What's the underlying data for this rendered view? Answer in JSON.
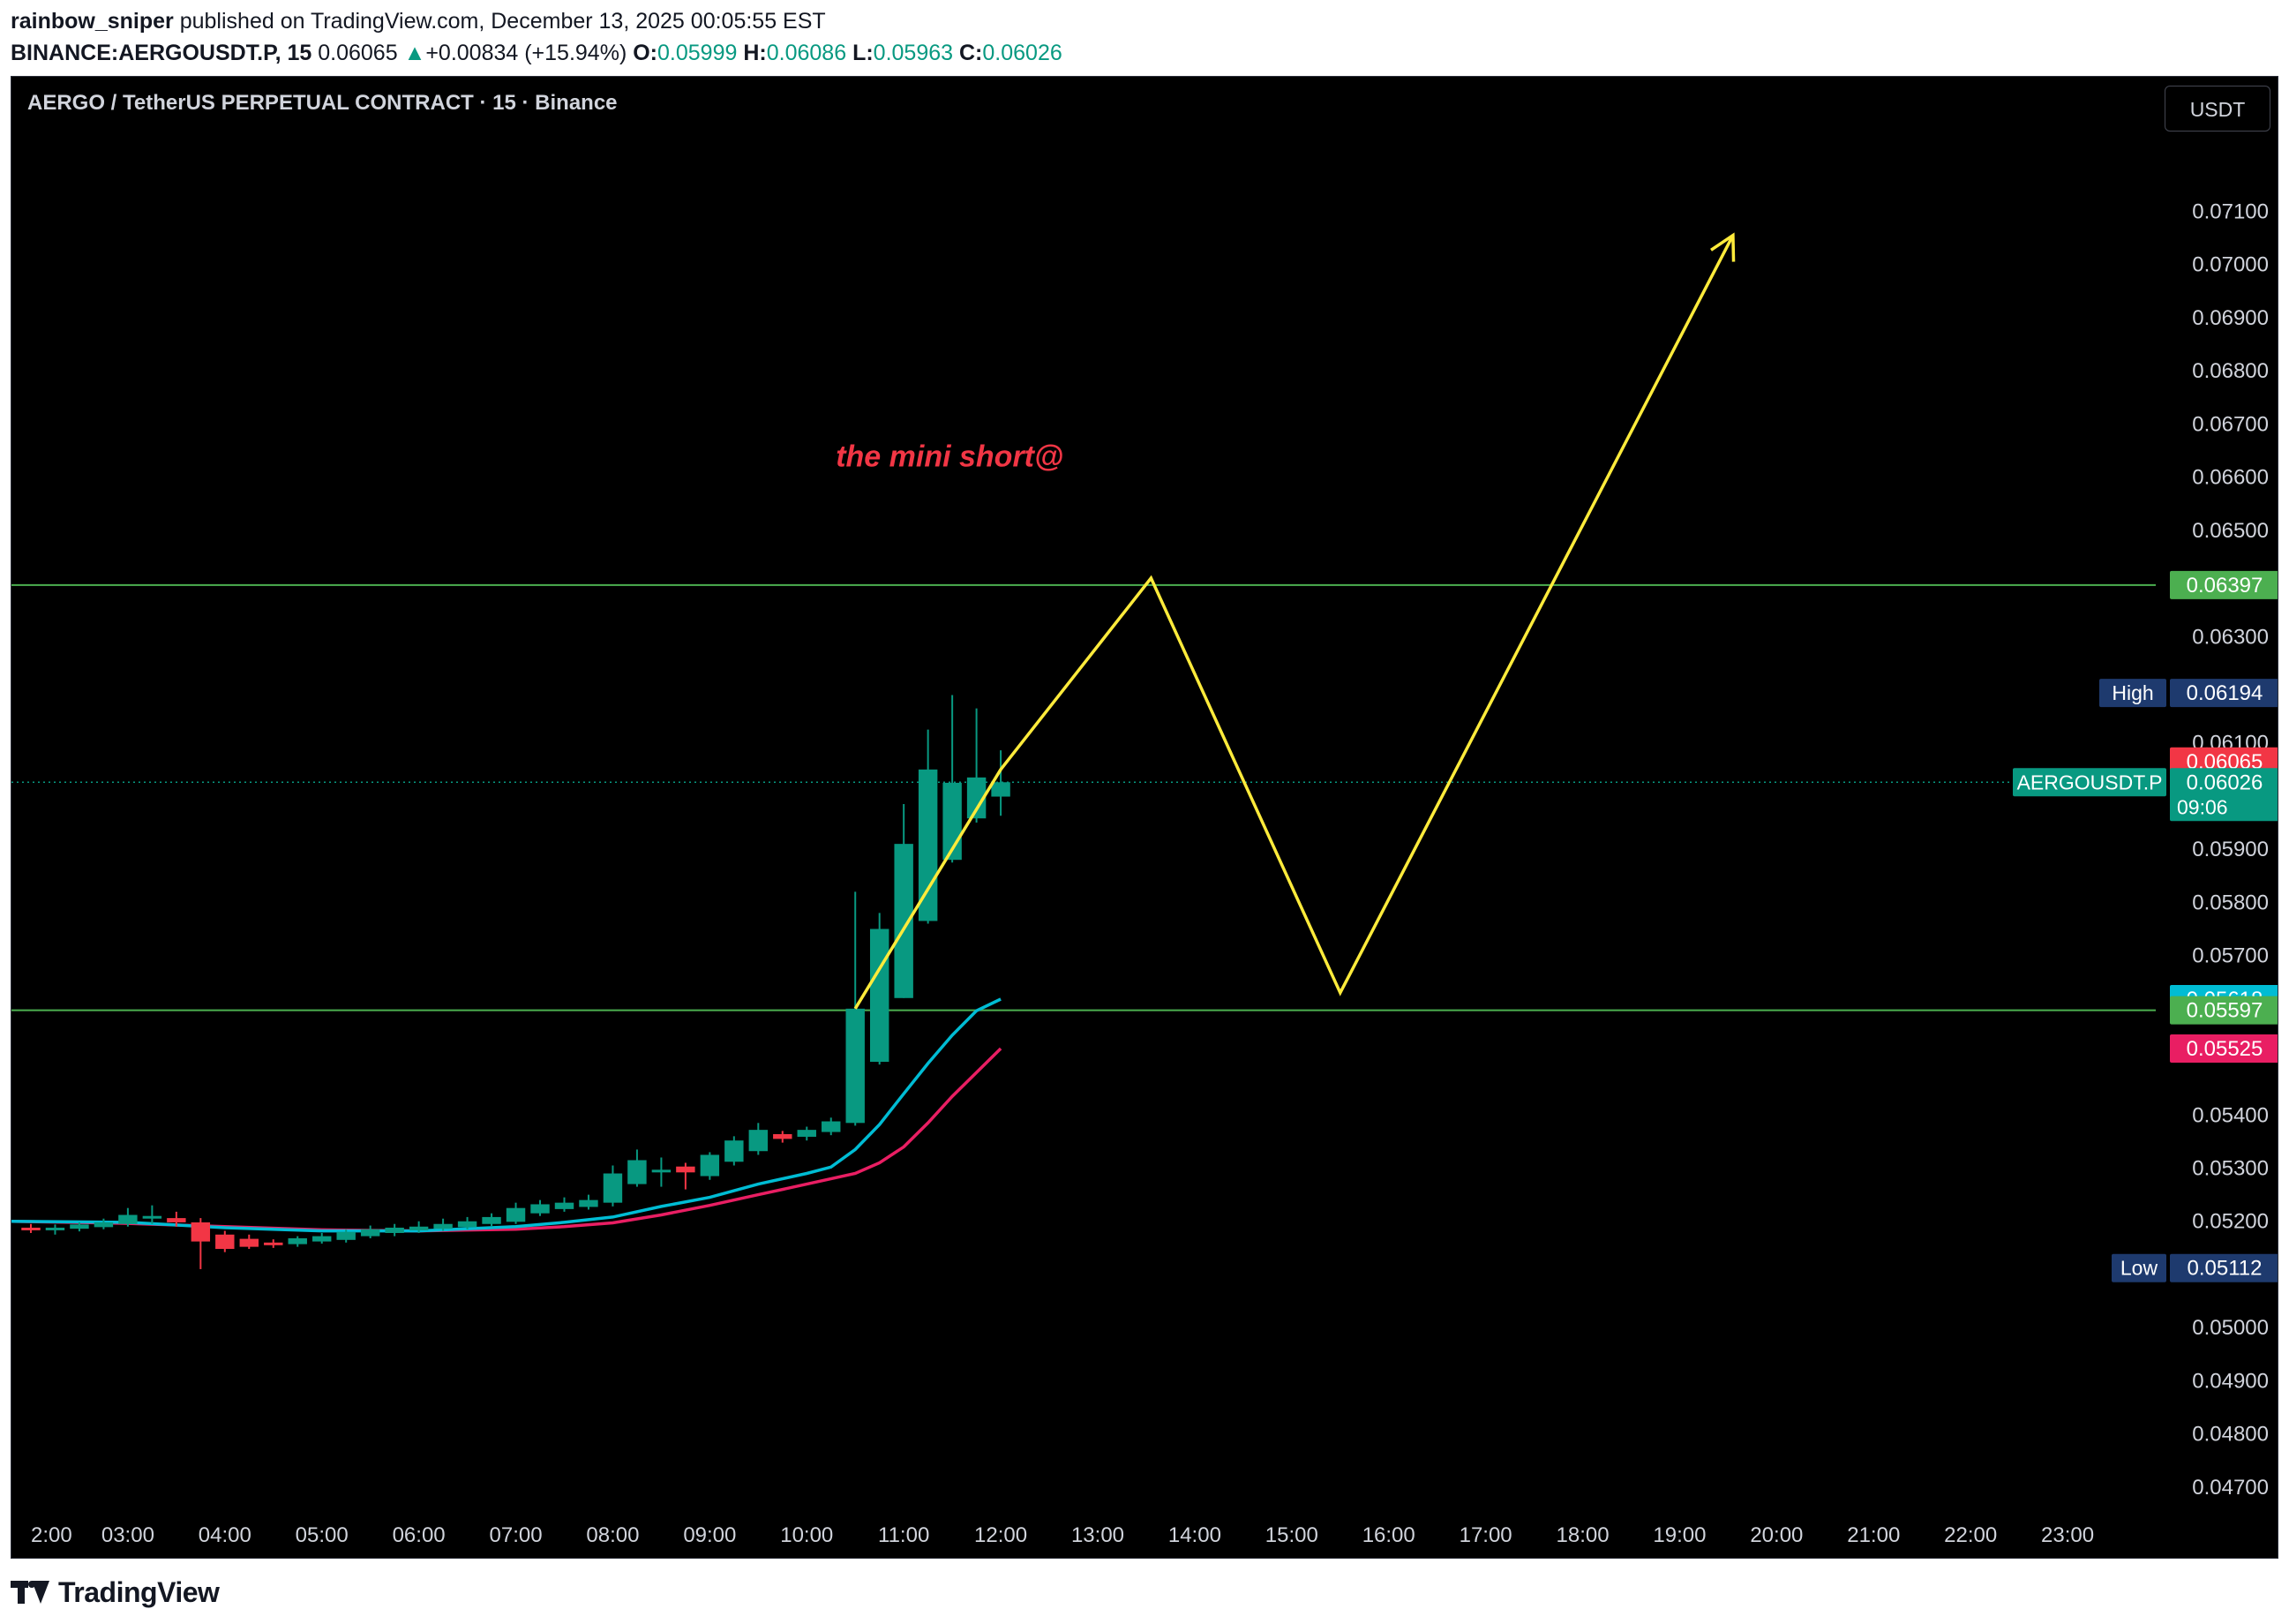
{
  "header": {
    "author": "rainbow_sniper",
    "published_text": "published on TradingView.com, December 13, 2025 00:05:55 EST",
    "symbol": "BINANCE:AERGOUSDT.P, 15",
    "last": "0.06065",
    "change": "+0.00834 (+15.94%)",
    "open_label": "O:",
    "open": "0.05999",
    "high_label": "H:",
    "high": "0.06086",
    "low_label": "L:",
    "low": "0.05963",
    "close_label": "C:",
    "close": "0.06026"
  },
  "chart_title": "AERGO / TetherUS PERPETUAL CONTRACT · 15 · Binance",
  "currency_button": "USDT",
  "footer": {
    "brand": "TradingView"
  },
  "colors": {
    "up": "#089981",
    "down": "#f23645",
    "ema_fast": "#00bcd4",
    "ema_slow": "#e91e63",
    "projection": "#ffeb3b",
    "levels": "#4caf50",
    "annotation": "#f23645",
    "badge_navy": "#1e3a6e"
  },
  "chart_data": {
    "type": "candlestick",
    "title": "AERGO / TetherUS PERPETUAL CONTRACT · 15 · Binance",
    "interval_minutes": 15,
    "x_ticks": [
      "2:00",
      "03:00",
      "04:00",
      "05:00",
      "06:00",
      "07:00",
      "08:00",
      "09:00",
      "10:00",
      "11:00",
      "12:00",
      "13:00",
      "14:00",
      "15:00",
      "16:00",
      "17:00",
      "18:00",
      "19:00",
      "20:00",
      "21:00",
      "22:00",
      "23:00"
    ],
    "y_ticks": [
      "0.07100",
      "0.07000",
      "0.06900",
      "0.06800",
      "0.06700",
      "0.06600",
      "0.06500",
      "0.06300",
      "0.06100",
      "0.05900",
      "0.05800",
      "0.05700",
      "0.05400",
      "0.05300",
      "0.05200",
      "0.05000",
      "0.04900",
      "0.04800",
      "0.04700"
    ],
    "y_range": [
      0.0463,
      0.0732
    ],
    "x_range_hours": [
      1.8,
      24.0
    ],
    "candles": [
      {
        "t": 2.0,
        "o": 0.05188,
        "h": 0.05195,
        "l": 0.05178,
        "c": 0.05183
      },
      {
        "t": 2.25,
        "o": 0.05184,
        "h": 0.05194,
        "l": 0.05175,
        "c": 0.05188
      },
      {
        "t": 2.5,
        "o": 0.05186,
        "h": 0.05198,
        "l": 0.05181,
        "c": 0.05194
      },
      {
        "t": 2.75,
        "o": 0.05189,
        "h": 0.05205,
        "l": 0.05185,
        "c": 0.05198
      },
      {
        "t": 3.0,
        "o": 0.05195,
        "h": 0.05225,
        "l": 0.0519,
        "c": 0.05212
      },
      {
        "t": 3.25,
        "o": 0.05206,
        "h": 0.0523,
        "l": 0.05195,
        "c": 0.0521
      },
      {
        "t": 3.5,
        "o": 0.05206,
        "h": 0.05218,
        "l": 0.0519,
        "c": 0.05198
      },
      {
        "t": 3.75,
        "o": 0.05198,
        "h": 0.05206,
        "l": 0.0511,
        "c": 0.05162
      },
      {
        "t": 4.0,
        "o": 0.05175,
        "h": 0.05182,
        "l": 0.05142,
        "c": 0.05148
      },
      {
        "t": 4.25,
        "o": 0.05167,
        "h": 0.05175,
        "l": 0.05148,
        "c": 0.05152
      },
      {
        "t": 4.5,
        "o": 0.0516,
        "h": 0.05166,
        "l": 0.0515,
        "c": 0.05155
      },
      {
        "t": 4.75,
        "o": 0.05157,
        "h": 0.05172,
        "l": 0.05152,
        "c": 0.05168
      },
      {
        "t": 5.0,
        "o": 0.05162,
        "h": 0.05178,
        "l": 0.05158,
        "c": 0.05172
      },
      {
        "t": 5.25,
        "o": 0.05165,
        "h": 0.05185,
        "l": 0.0516,
        "c": 0.0518
      },
      {
        "t": 5.5,
        "o": 0.05172,
        "h": 0.05192,
        "l": 0.05168,
        "c": 0.05185
      },
      {
        "t": 5.75,
        "o": 0.05178,
        "h": 0.05195,
        "l": 0.05172,
        "c": 0.05188
      },
      {
        "t": 6.0,
        "o": 0.05183,
        "h": 0.052,
        "l": 0.05178,
        "c": 0.0519
      },
      {
        "t": 6.25,
        "o": 0.05186,
        "h": 0.05205,
        "l": 0.05182,
        "c": 0.05195
      },
      {
        "t": 6.5,
        "o": 0.05189,
        "h": 0.05208,
        "l": 0.05185,
        "c": 0.052
      },
      {
        "t": 6.75,
        "o": 0.05195,
        "h": 0.05215,
        "l": 0.0519,
        "c": 0.05208
      },
      {
        "t": 7.0,
        "o": 0.05199,
        "h": 0.05235,
        "l": 0.05195,
        "c": 0.05225
      },
      {
        "t": 7.25,
        "o": 0.05215,
        "h": 0.0524,
        "l": 0.0521,
        "c": 0.05232
      },
      {
        "t": 7.5,
        "o": 0.05223,
        "h": 0.05245,
        "l": 0.05218,
        "c": 0.05235
      },
      {
        "t": 7.75,
        "o": 0.05227,
        "h": 0.0525,
        "l": 0.05222,
        "c": 0.0524
      },
      {
        "t": 8.0,
        "o": 0.05235,
        "h": 0.05305,
        "l": 0.05228,
        "c": 0.0529
      },
      {
        "t": 8.25,
        "o": 0.0527,
        "h": 0.05335,
        "l": 0.05265,
        "c": 0.05315
      },
      {
        "t": 8.5,
        "o": 0.05292,
        "h": 0.0532,
        "l": 0.05265,
        "c": 0.05297
      },
      {
        "t": 8.75,
        "o": 0.05303,
        "h": 0.0531,
        "l": 0.0526,
        "c": 0.05292
      },
      {
        "t": 9.0,
        "o": 0.05285,
        "h": 0.0533,
        "l": 0.05278,
        "c": 0.05325
      },
      {
        "t": 9.25,
        "o": 0.05312,
        "h": 0.0536,
        "l": 0.05305,
        "c": 0.05352
      },
      {
        "t": 9.5,
        "o": 0.05332,
        "h": 0.05385,
        "l": 0.05325,
        "c": 0.05372
      },
      {
        "t": 9.75,
        "o": 0.05364,
        "h": 0.0537,
        "l": 0.05348,
        "c": 0.05355
      },
      {
        "t": 10.0,
        "o": 0.05359,
        "h": 0.05378,
        "l": 0.05352,
        "c": 0.05372
      },
      {
        "t": 10.25,
        "o": 0.05368,
        "h": 0.05395,
        "l": 0.05362,
        "c": 0.05388
      },
      {
        "t": 10.5,
        "o": 0.05385,
        "h": 0.0582,
        "l": 0.0538,
        "c": 0.056
      },
      {
        "t": 10.75,
        "o": 0.055,
        "h": 0.0578,
        "l": 0.05495,
        "c": 0.0575
      },
      {
        "t": 11.0,
        "o": 0.0562,
        "h": 0.05985,
        "l": 0.0562,
        "c": 0.0591
      },
      {
        "t": 11.25,
        "o": 0.05765,
        "h": 0.06125,
        "l": 0.0576,
        "c": 0.0605
      },
      {
        "t": 11.5,
        "o": 0.0588,
        "h": 0.0619,
        "l": 0.05875,
        "c": 0.06025
      },
      {
        "t": 11.75,
        "o": 0.05958,
        "h": 0.06165,
        "l": 0.0595,
        "c": 0.06035
      },
      {
        "t": 12.0,
        "o": 0.05999,
        "h": 0.06086,
        "l": 0.05963,
        "c": 0.06026
      }
    ],
    "ema_fast": [
      [
        1.8,
        0.052
      ],
      [
        3.0,
        0.05198
      ],
      [
        4.0,
        0.05188
      ],
      [
        5.0,
        0.05182
      ],
      [
        6.0,
        0.05182
      ],
      [
        7.0,
        0.0519
      ],
      [
        7.5,
        0.05198
      ],
      [
        8.0,
        0.05208
      ],
      [
        8.5,
        0.05228
      ],
      [
        9.0,
        0.05245
      ],
      [
        9.5,
        0.0527
      ],
      [
        10.0,
        0.0529
      ],
      [
        10.25,
        0.05302
      ],
      [
        10.5,
        0.05335
      ],
      [
        10.75,
        0.05382
      ],
      [
        11.0,
        0.0544
      ],
      [
        11.25,
        0.05497
      ],
      [
        11.5,
        0.0555
      ],
      [
        11.75,
        0.05596
      ],
      [
        12.0,
        0.05618
      ]
    ],
    "ema_slow": [
      [
        1.8,
        0.052
      ],
      [
        3.0,
        0.05196
      ],
      [
        4.0,
        0.0519
      ],
      [
        5.0,
        0.05184
      ],
      [
        6.0,
        0.05182
      ],
      [
        7.0,
        0.05185
      ],
      [
        7.5,
        0.0519
      ],
      [
        8.0,
        0.05197
      ],
      [
        8.5,
        0.05212
      ],
      [
        9.0,
        0.0523
      ],
      [
        9.5,
        0.0525
      ],
      [
        10.0,
        0.0527
      ],
      [
        10.5,
        0.0529
      ],
      [
        10.75,
        0.0531
      ],
      [
        11.0,
        0.0534
      ],
      [
        11.25,
        0.05385
      ],
      [
        11.5,
        0.05435
      ],
      [
        11.75,
        0.0548
      ],
      [
        12.0,
        0.05525
      ]
    ],
    "horizontal_levels": [
      0.06397,
      0.05597
    ],
    "current_price": 0.06026,
    "projection_path": [
      [
        10.5,
        0.056
      ],
      [
        12.0,
        0.0605
      ],
      [
        13.55,
        0.0641
      ],
      [
        15.5,
        0.0563
      ],
      [
        19.55,
        0.07055
      ]
    ],
    "annotation": {
      "text": "the mini short@",
      "t": 10.3,
      "price": 0.0662
    },
    "price_labels": [
      {
        "price": 0.06397,
        "text": "0.06397",
        "bg": "#4caf50"
      },
      {
        "price": 0.06194,
        "tag": "High",
        "text": "0.06194",
        "bg": "#1e3a6e"
      },
      {
        "price": 0.06065,
        "text": "0.06065",
        "bg": "#f23645"
      },
      {
        "price": 0.06026,
        "tag": "AERGOUSDT.P",
        "text": "0.06026",
        "sub": "09:06",
        "bg": "#089981"
      },
      {
        "price": 0.05618,
        "text": "0.05618",
        "bg": "#00bcd4"
      },
      {
        "price": 0.05597,
        "text": "0.05597",
        "bg": "#4caf50"
      },
      {
        "price": 0.05525,
        "text": "0.05525",
        "bg": "#e91e63"
      },
      {
        "price": 0.05112,
        "tag": "Low",
        "text": "0.05112",
        "bg": "#1e3a6e"
      }
    ]
  }
}
